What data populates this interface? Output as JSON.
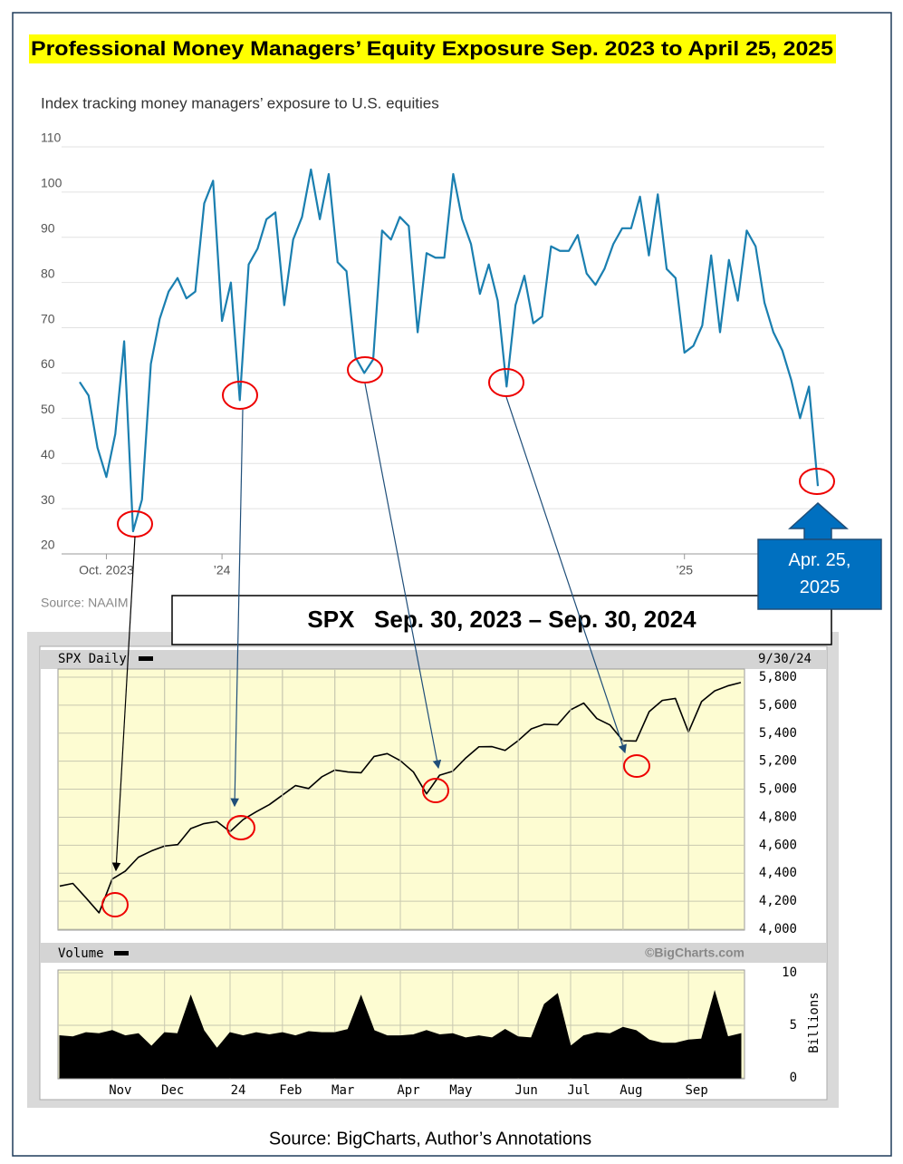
{
  "title": "Professional Money Managers’ Equity Exposure Sep. 2023 to April 25, 2025",
  "annotations": {
    "spx_box": "SPX   Sep. 30, 2023 – Sep. 30, 2024",
    "callout": "Apr. 25, 2025"
  },
  "source": "Source: BigCharts, Author’s Annotations",
  "chart_data": [
    {
      "type": "line",
      "title": "Index tracking money managers’ exposure to U.S. equities",
      "source": "Source: NAAIM",
      "color": "#1a7fb0",
      "categories": [
        null,
        null,
        null,
        "Oct. 2023",
        null,
        null,
        null,
        null,
        null,
        null,
        null,
        null,
        null,
        null,
        null,
        null,
        "’24",
        null,
        null,
        null,
        null,
        null,
        null,
        null,
        null,
        null,
        null,
        null,
        null,
        null,
        null,
        null,
        null,
        null,
        null,
        null,
        null,
        null,
        null,
        null,
        null,
        null,
        null,
        null,
        null,
        null,
        null,
        null,
        null,
        null,
        null,
        null,
        null,
        null,
        null,
        null,
        null,
        null,
        null,
        null,
        null,
        null,
        null,
        null,
        null,
        null,
        null,
        null,
        "’25",
        null,
        null,
        null,
        null,
        null,
        null,
        null,
        null,
        null,
        null,
        null,
        null,
        null,
        null,
        null
      ],
      "values": [
        58,
        55,
        43.5,
        37,
        46.5,
        67,
        25,
        32,
        62,
        72,
        78,
        81,
        76.5,
        78,
        97.5,
        102.5,
        71.5,
        80,
        54,
        84,
        87.5,
        94,
        95.5,
        75,
        89.5,
        94.5,
        105,
        94,
        104,
        84.5,
        82.5,
        63.5,
        60,
        63,
        91.5,
        89.5,
        94.5,
        92.5,
        69,
        86.5,
        85.5,
        85.5,
        104,
        94,
        88.5,
        77.5,
        84,
        76,
        57,
        75,
        81.5,
        71,
        72.5,
        88,
        87,
        87,
        90.5,
        82,
        79.5,
        83,
        88.5,
        92,
        92,
        99,
        86,
        99.5,
        83,
        81,
        64.5,
        66,
        70.5,
        86,
        69,
        85,
        76,
        91.5,
        88,
        75.5,
        69,
        65,
        58.5,
        50,
        57,
        35
      ],
      "ylim": [
        20,
        110
      ],
      "yticks": [
        20,
        30,
        40,
        50,
        60,
        70,
        80,
        90,
        100,
        110
      ],
      "grid": true
    },
    {
      "type": "line",
      "title": "SPX Daily",
      "date_label": "9/30/24",
      "color": "#000000",
      "values": [
        4308,
        4327,
        4224,
        4117,
        4358,
        4415,
        4514,
        4559,
        4594,
        4604,
        4719,
        4754,
        4769,
        4697,
        4783,
        4839,
        4890,
        4958,
        5026,
        5005,
        5088,
        5137,
        5123,
        5117,
        5234,
        5254,
        5204,
        5123,
        4967,
        5100,
        5128,
        5223,
        5303,
        5304,
        5277,
        5347,
        5431,
        5464,
        5460,
        5567,
        5615,
        5505,
        5459,
        5346,
        5344,
        5554,
        5634,
        5648,
        5408,
        5626,
        5702,
        5738,
        5762
      ],
      "ylim": [
        4000,
        5800
      ],
      "yticks": [
        {
          "value": 4000,
          "label": "4,000"
        },
        {
          "value": 4200,
          "label": "4,200"
        },
        {
          "value": 4400,
          "label": "4,400"
        },
        {
          "value": 4600,
          "label": "4,600"
        },
        {
          "value": 4800,
          "label": "4,800"
        },
        {
          "value": 5000,
          "label": "5,000"
        },
        {
          "value": 5200,
          "label": "5,200"
        },
        {
          "value": 5400,
          "label": "5,400"
        },
        {
          "value": 5600,
          "label": "5,600"
        },
        {
          "value": 5800,
          "label": "5,800"
        }
      ],
      "grid": true
    },
    {
      "type": "area",
      "title": "Volume",
      "watermark": "©BigCharts.com",
      "y_label": "Billions",
      "color": "#000000",
      "categories": [
        null,
        null,
        null,
        null,
        "Nov",
        null,
        null,
        null,
        "Dec",
        null,
        null,
        null,
        null,
        "24",
        null,
        null,
        null,
        "Feb",
        null,
        null,
        null,
        "Mar",
        null,
        null,
        null,
        null,
        "Apr",
        null,
        null,
        null,
        "May",
        null,
        null,
        null,
        null,
        "Jun",
        null,
        null,
        null,
        "Jul",
        null,
        null,
        null,
        "Aug",
        null,
        null,
        null,
        null,
        "Sep",
        null,
        null,
        null,
        null
      ],
      "values": [
        4.0,
        3.9,
        4.3,
        4.2,
        4.5,
        4.0,
        4.2,
        3.0,
        4.3,
        4.2,
        7.8,
        4.5,
        2.8,
        4.3,
        4.0,
        4.3,
        4.1,
        4.3,
        4.0,
        4.4,
        4.3,
        4.3,
        4.6,
        7.8,
        4.5,
        4.0,
        4.0,
        4.1,
        4.5,
        4.1,
        4.2,
        3.8,
        4.0,
        3.8,
        4.6,
        3.9,
        3.8,
        7.0,
        8.0,
        3.0,
        4.0,
        4.3,
        4.2,
        4.8,
        4.5,
        3.6,
        3.3,
        3.3,
        3.6,
        3.7,
        8.2,
        3.9,
        4.2
      ],
      "ylim": [
        0,
        10
      ],
      "yticks": [
        0,
        5,
        10
      ],
      "grid": true
    }
  ]
}
